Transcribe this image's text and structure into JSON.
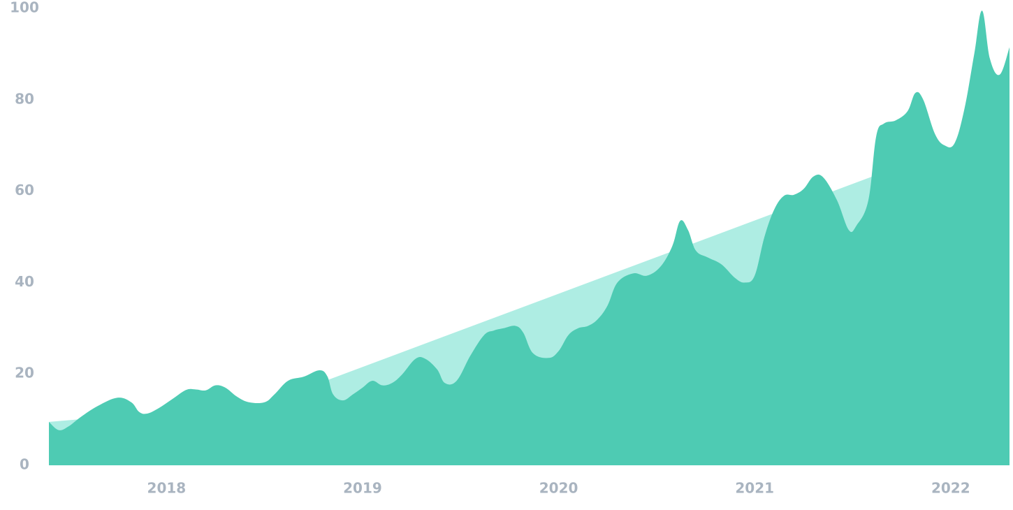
{
  "chart_data": {
    "type": "area",
    "title": "",
    "xlabel": "",
    "ylabel": "",
    "ylim": [
      0,
      100
    ],
    "xlim": [
      2017.4,
      2022.3
    ],
    "y_ticks": [
      0,
      20,
      40,
      60,
      80,
      100
    ],
    "x_ticks": [
      {
        "value": 2018,
        "label": "2018"
      },
      {
        "value": 2019,
        "label": "2019"
      },
      {
        "value": 2020,
        "label": "2020"
      },
      {
        "value": 2021,
        "label": "2021"
      },
      {
        "value": 2022,
        "label": "2022"
      }
    ],
    "grid": false,
    "colors": {
      "actual": "#4ecbb3",
      "trend": "#aeede3",
      "ticks": "#a9b4c0"
    },
    "series": [
      {
        "name": "",
        "role": "trend",
        "x": [
          2017.4,
          2018.5,
          2021.65
        ],
        "y": [
          9.5,
          13.5,
          64.0
        ]
      },
      {
        "name": "",
        "role": "actual",
        "x": [
          2017.4,
          2017.45,
          2017.5,
          2017.56,
          2017.65,
          2017.75,
          2017.82,
          2017.86,
          2017.9,
          2017.96,
          2018.03,
          2018.1,
          2018.15,
          2018.2,
          2018.25,
          2018.3,
          2018.36,
          2018.42,
          2018.5,
          2018.55,
          2018.62,
          2018.7,
          2018.78,
          2018.82,
          2018.85,
          2018.9,
          2018.95,
          2019.0,
          2019.05,
          2019.1,
          2019.15,
          2019.2,
          2019.27,
          2019.32,
          2019.38,
          2019.42,
          2019.48,
          2019.55,
          2019.62,
          2019.67,
          2019.72,
          2019.78,
          2019.82,
          2019.87,
          2019.95,
          2020.0,
          2020.05,
          2020.1,
          2020.15,
          2020.2,
          2020.25,
          2020.3,
          2020.38,
          2020.45,
          2020.52,
          2020.58,
          2020.62,
          2020.66,
          2020.7,
          2020.76,
          2020.83,
          2020.9,
          2020.95,
          2021.0,
          2021.05,
          2021.1,
          2021.15,
          2021.2,
          2021.25,
          2021.3,
          2021.35,
          2021.42,
          2021.48,
          2021.52,
          2021.58,
          2021.62,
          2021.66,
          2021.72,
          2021.78,
          2021.82,
          2021.86,
          2021.92,
          2021.97,
          2022.02,
          2022.07,
          2022.12,
          2022.16,
          2022.2,
          2022.25,
          2022.3
        ],
        "y": [
          9.5,
          7.7,
          8.5,
          10.5,
          13.0,
          14.8,
          13.8,
          11.7,
          11.3,
          12.5,
          14.5,
          16.5,
          16.6,
          16.4,
          17.5,
          17.0,
          15.0,
          13.8,
          13.8,
          15.5,
          18.5,
          19.4,
          20.8,
          19.5,
          15.5,
          14.2,
          15.5,
          17.0,
          18.5,
          17.5,
          18.0,
          19.8,
          23.3,
          23.3,
          21.0,
          18.0,
          18.5,
          24.0,
          28.5,
          29.5,
          30.0,
          30.5,
          29.0,
          24.5,
          23.5,
          25.0,
          28.5,
          30.0,
          30.5,
          32.0,
          35.0,
          40.0,
          42.0,
          41.5,
          43.5,
          48.0,
          53.5,
          51.5,
          47.0,
          45.5,
          44.0,
          41.0,
          40.0,
          41.5,
          50.0,
          56.0,
          59.0,
          59.2,
          60.5,
          63.2,
          63.0,
          58.0,
          51.5,
          52.5,
          58.0,
          72.0,
          74.8,
          75.5,
          77.5,
          81.5,
          80.0,
          72.5,
          70.0,
          70.5,
          78.0,
          90.0,
          99.5,
          89.0,
          85.5,
          91.5
        ]
      }
    ]
  }
}
